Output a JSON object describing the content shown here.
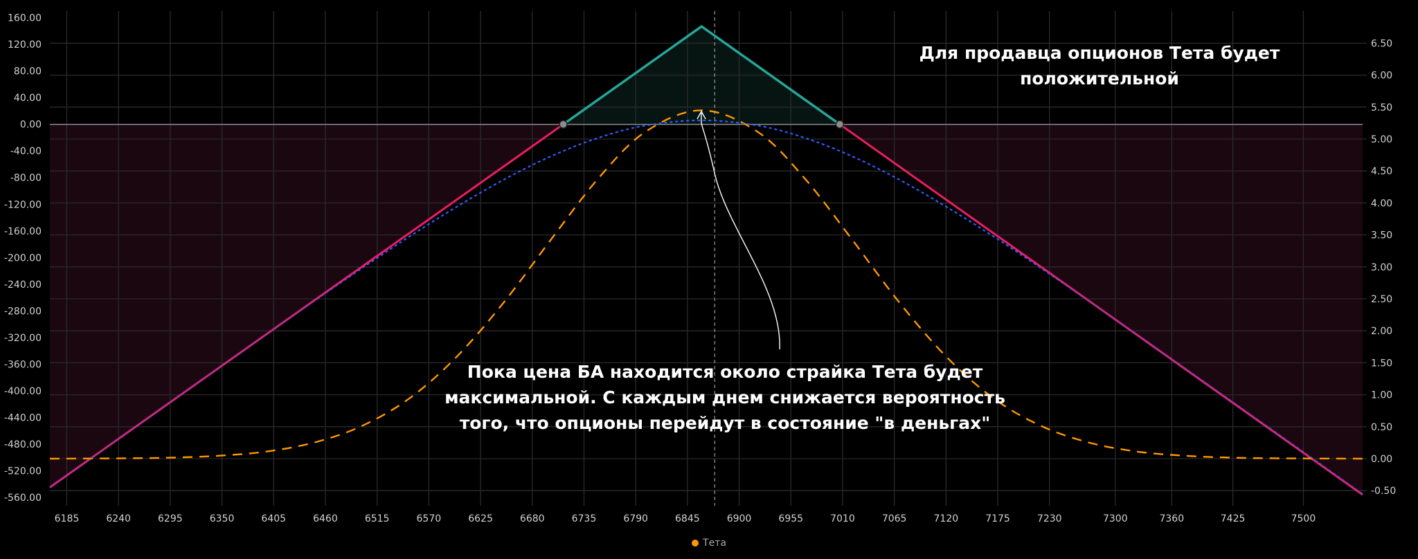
{
  "chart_data": {
    "type": "line",
    "title": "",
    "xlabel": "",
    "ylabel": "",
    "xlim": [
      6167,
      7563
    ],
    "ylim_left": [
      -559,
      170
    ],
    "ylim_right": [
      -0.6,
      6.9
    ],
    "grid": true,
    "legend_position": "bottom",
    "x_ticks": [
      6185,
      6240,
      6295,
      6350,
      6405,
      6460,
      6515,
      6570,
      6625,
      6680,
      6735,
      6790,
      6845,
      6900,
      6955,
      7010,
      7065,
      7120,
      7175,
      7230,
      7300,
      7360,
      7425,
      7500
    ],
    "y_left_ticks": [
      "160.00",
      "120.00",
      "80.00",
      "40.00",
      "0.00",
      "-40.00",
      "-80.00",
      "-120.00",
      "-160.00",
      "-200.00",
      "-240.00",
      "-280.00",
      "-320.00",
      "-360.00",
      "-400.00",
      "-440.00",
      "-480.00",
      "-520.00",
      "-560.00"
    ],
    "y_right_ticks": [
      "6.50",
      "6.00",
      "5.50",
      "5.00",
      "4.50",
      "4.00",
      "3.50",
      "3.00",
      "2.50",
      "2.00",
      "1.50",
      "1.00",
      "0.50",
      "0.00",
      "-0.50"
    ],
    "current_price": 6874,
    "breakevens": [
      6713,
      7007
    ],
    "series": [
      {
        "key": "pnl_expiration",
        "axis": "left",
        "style": "solid",
        "color_profit": "#26a69a",
        "color_loss": "#e91e63",
        "x": [
          6167,
          6713,
          6860,
          7007,
          7563
        ],
        "y": [
          -545,
          0,
          147,
          0,
          -556
        ]
      },
      {
        "key": "pnl_today",
        "axis": "left",
        "style": "dotted",
        "color": "#2f5cff",
        "x": [
          6167,
          6250,
          6300,
          6350,
          6400,
          6450,
          6500,
          6550,
          6600,
          6650,
          6700,
          6750,
          6800,
          6860,
          6920,
          6970,
          7020,
          7070,
          7120,
          7170,
          7220,
          7270,
          7320,
          7370,
          7420,
          7470,
          7563
        ],
        "y": [
          -545,
          -462.2,
          -412.1,
          -362.3,
          -312.6,
          -263.3,
          -214.9,
          -167.9,
          -123.5,
          -82.8,
          -47.9,
          -20.4,
          -1.9,
          6,
          -1.9,
          -20.4,
          -47.9,
          -82.8,
          -123.5,
          -167.9,
          -214.9,
          -263.3,
          -312.6,
          -362.3,
          -412.1,
          -462,
          -555
        ]
      },
      {
        "key": "theta",
        "name": "Тета",
        "axis": "right",
        "style": "dashed",
        "color": "#ff9800",
        "x": [
          6167,
          6250,
          6300,
          6350,
          6400,
          6450,
          6500,
          6550,
          6600,
          6650,
          6700,
          6750,
          6800,
          6860,
          6920,
          6970,
          7020,
          7070,
          7120,
          7170,
          7220,
          7270,
          7320,
          7370,
          7420,
          7470,
          7563
        ],
        "y": [
          0.0,
          0.006,
          0.018,
          0.049,
          0.117,
          0.26,
          0.52,
          0.95,
          1.6,
          2.45,
          3.43,
          4.38,
          5.11,
          5.45,
          5.11,
          4.38,
          3.43,
          2.45,
          1.6,
          0.95,
          0.52,
          0.26,
          0.117,
          0.049,
          0.018,
          0.006,
          0.0
        ]
      }
    ],
    "annotations": {
      "top_right": [
        "Для продавца опционов Тета будет",
        "положительной"
      ],
      "center": [
        "Пока цена БА находится около страйка Тета будет",
        "максимальной. С каждым днем снижается вероятность",
        "того, что опционы перейдут в состояние \"в деньгах\""
      ]
    },
    "legend": [
      {
        "label": "Тета",
        "color": "#ff9800"
      }
    ],
    "colors": {
      "background": "#000000",
      "grid": "#2b2b2b",
      "zero_line": "#8a8a8a",
      "loss_fill": "#1b0710",
      "profit_fill": "#061512",
      "breakeven_marker": "#8c8c8c"
    }
  }
}
